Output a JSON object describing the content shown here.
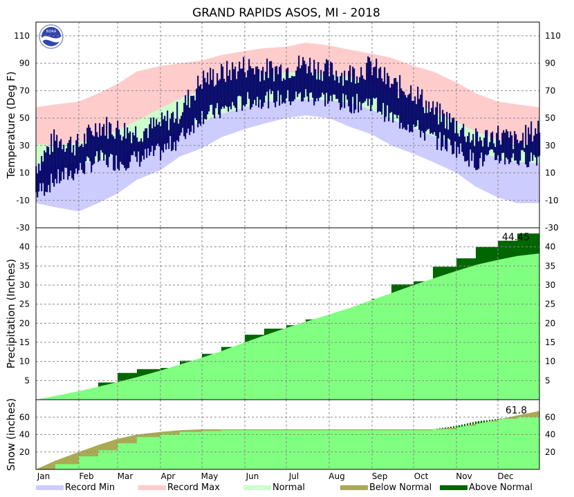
{
  "chart_data": {
    "title": "GRAND RAPIDS ASOS, MI - 2018",
    "months": [
      "Jan",
      "Feb",
      "Mar",
      "Apr",
      "May",
      "Jun",
      "Jul",
      "Aug",
      "Sep",
      "Oct",
      "Nov",
      "Dec"
    ],
    "colors": {
      "record_min": "#ccccff",
      "record_max": "#ffcccc",
      "normal_temp": "#ccffcc",
      "observed_temp": "#000066",
      "normal_fill": "#80ff80",
      "below_normal": "#aaaa55",
      "above_normal": "#006600"
    },
    "legend": [
      {
        "label": "Record Min",
        "color": "#ccccff"
      },
      {
        "label": "Record Max",
        "color": "#ffcccc"
      },
      {
        "label": "Normal",
        "color": "#ccffcc"
      },
      {
        "label": "Below Normal",
        "color": "#aaaa55"
      },
      {
        "label": "Above Normal",
        "color": "#006600"
      }
    ],
    "charts": [
      {
        "type": "area",
        "panel": "temperature",
        "ylabel": "Temperature (Deg F)",
        "ylim": [
          -30,
          120
        ],
        "yticks": [
          -30,
          -10,
          10,
          30,
          50,
          70,
          90,
          110
        ],
        "grid": true,
        "daily_data": {
          "x_units": "day of year",
          "x": [
            1,
            15,
            32,
            46,
            60,
            74,
            91,
            105,
            121,
            135,
            152,
            166,
            182,
            196,
            213,
            227,
            244,
            258,
            274,
            288,
            305,
            319,
            335,
            349,
            365
          ],
          "record_max": [
            58,
            60,
            62,
            68,
            75,
            84,
            88,
            90,
            92,
            96,
            99,
            101,
            102,
            105,
            103,
            100,
            97,
            94,
            88,
            84,
            76,
            68,
            62,
            60,
            58
          ],
          "record_min": [
            -12,
            -15,
            -18,
            -12,
            -5,
            5,
            12,
            22,
            28,
            36,
            42,
            46,
            50,
            52,
            50,
            44,
            38,
            30,
            24,
            18,
            10,
            0,
            -8,
            -12,
            -12
          ],
          "normal_high": [
            31,
            30,
            32,
            35,
            41,
            48,
            57,
            64,
            70,
            76,
            80,
            82,
            83,
            83,
            82,
            80,
            75,
            68,
            62,
            55,
            47,
            40,
            34,
            31,
            31
          ],
          "normal_low": [
            17,
            16,
            17,
            19,
            23,
            29,
            35,
            42,
            47,
            53,
            58,
            62,
            63,
            64,
            63,
            61,
            56,
            49,
            43,
            37,
            31,
            26,
            21,
            18,
            17
          ],
          "observed_high": [
            15,
            35,
            30,
            45,
            42,
            40,
            45,
            55,
            78,
            82,
            88,
            85,
            86,
            90,
            84,
            82,
            88,
            74,
            70,
            55,
            45,
            34,
            38,
            32,
            44
          ],
          "observed_low": [
            -5,
            5,
            12,
            20,
            18,
            20,
            25,
            35,
            52,
            55,
            62,
            64,
            64,
            66,
            64,
            60,
            62,
            50,
            44,
            35,
            28,
            18,
            22,
            20,
            22
          ]
        }
      },
      {
        "type": "area",
        "panel": "precipitation",
        "ylabel": "Precipitation (Inches)",
        "ylim": [
          0,
          45
        ],
        "yticks": [
          5,
          10,
          15,
          20,
          25,
          30,
          35,
          40
        ],
        "grid": true,
        "annotation": "44.45",
        "daily_data": {
          "x_units": "day of year",
          "x": [
            1,
            32,
            46,
            60,
            74,
            91,
            105,
            121,
            135,
            152,
            166,
            182,
            196,
            213,
            227,
            244,
            258,
            274,
            288,
            305,
            319,
            335,
            349,
            365
          ],
          "normal": [
            0,
            2.2,
            3.4,
            4.6,
            5.9,
            7.6,
            9.2,
            11.0,
            12.7,
            15.0,
            16.8,
            18.8,
            20.4,
            22.3,
            23.9,
            26.1,
            27.9,
            30.0,
            31.7,
            33.7,
            35.3,
            36.6,
            37.6,
            38.3
          ],
          "observed": [
            0,
            2.2,
            4.5,
            7.0,
            8.0,
            8.3,
            10.2,
            12.0,
            13.8,
            17.0,
            18.6,
            19.5,
            21.0,
            22.3,
            23.8,
            26.4,
            30.2,
            31.0,
            34.8,
            37.0,
            40.0,
            41.6,
            43.5,
            44.45
          ]
        }
      },
      {
        "type": "area",
        "panel": "snow",
        "ylabel": "Snow (inches)",
        "ylim": [
          0,
          80
        ],
        "yticks": [
          20,
          40,
          60
        ],
        "grid": true,
        "annotation": "61.8",
        "daily_data": {
          "x_units": "day of year",
          "x": [
            1,
            15,
            32,
            46,
            60,
            74,
            91,
            105,
            121,
            135,
            152,
            274,
            288,
            305,
            319,
            335,
            349,
            365
          ],
          "normal": [
            0,
            10,
            20,
            28,
            35,
            40,
            43,
            45,
            46,
            46,
            46,
            46,
            46,
            48,
            52,
            57,
            62,
            67
          ],
          "observed": [
            0,
            6,
            15,
            22,
            30,
            37,
            40,
            43,
            44,
            45,
            45,
            45,
            46,
            50,
            55,
            58,
            60,
            61.8
          ]
        }
      }
    ]
  }
}
